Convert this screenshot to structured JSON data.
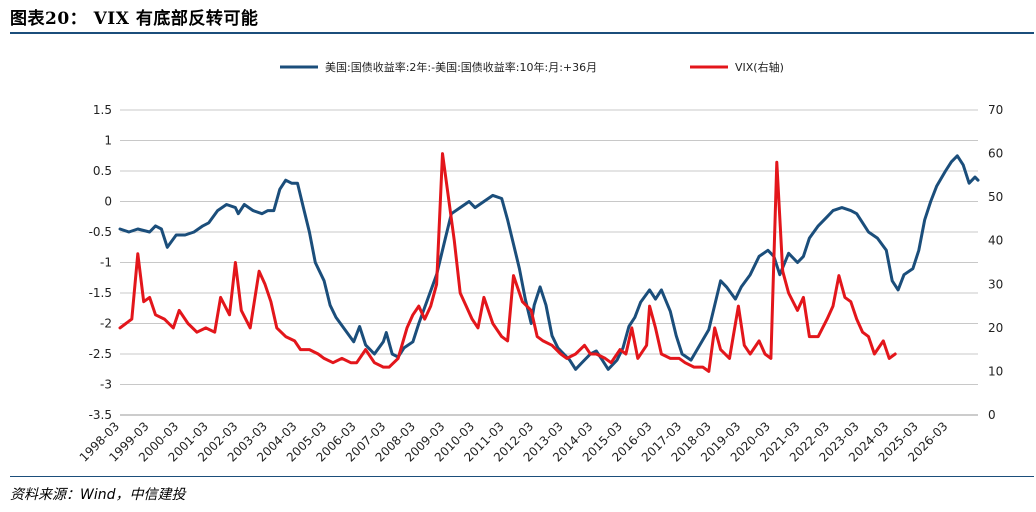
{
  "title": "图表20： VIX 有底部反转可能",
  "source": "资料来源：Wind，中信建投",
  "chart_data": {
    "type": "line",
    "legend_position": "top-center",
    "grid": true,
    "y_left": {
      "ylim": [
        -3.5,
        1.5
      ],
      "ticks": [
        "1.5",
        "1",
        "0.5",
        "0",
        "-0.5",
        "-1",
        "-1.5",
        "-2",
        "-2.5",
        "-3",
        "-3.5"
      ]
    },
    "y_right": {
      "ylim": [
        0,
        70
      ],
      "ticks": [
        "70",
        "60",
        "50",
        "40",
        "30",
        "20",
        "10",
        "0"
      ]
    },
    "x_ticks": [
      "1998-03",
      "1999-03",
      "2000-03",
      "2001-03",
      "2002-03",
      "2003-03",
      "2004-03",
      "2005-03",
      "2006-03",
      "2007-03",
      "2008-03",
      "2009-03",
      "2010-03",
      "2011-03",
      "2012-03",
      "2013-03",
      "2014-03",
      "2015-03",
      "2016-03",
      "2017-03",
      "2018-03",
      "2019-03",
      "2020-03",
      "2021-03",
      "2022-03",
      "2023-03",
      "2024-03",
      "2025-03",
      "2026-03"
    ],
    "series": [
      {
        "name": "美国:国债收益率:2年:-美国:国债收益率:10年:月:+36月",
        "axis": "left",
        "color": "#1b4e7b",
        "points": [
          [
            1998.0,
            -0.45
          ],
          [
            1998.3,
            -0.5
          ],
          [
            1998.6,
            -0.45
          ],
          [
            1999.0,
            -0.5
          ],
          [
            1999.2,
            -0.4
          ],
          [
            1999.4,
            -0.45
          ],
          [
            1999.6,
            -0.75
          ],
          [
            1999.9,
            -0.55
          ],
          [
            2000.2,
            -0.55
          ],
          [
            2000.5,
            -0.5
          ],
          [
            2000.8,
            -0.4
          ],
          [
            2001.0,
            -0.35
          ],
          [
            2001.3,
            -0.15
          ],
          [
            2001.6,
            -0.05
          ],
          [
            2001.9,
            -0.1
          ],
          [
            2002.0,
            -0.2
          ],
          [
            2002.2,
            -0.05
          ],
          [
            2002.5,
            -0.15
          ],
          [
            2002.8,
            -0.2
          ],
          [
            2003.0,
            -0.15
          ],
          [
            2003.2,
            -0.15
          ],
          [
            2003.4,
            0.2
          ],
          [
            2003.6,
            0.35
          ],
          [
            2003.8,
            0.3
          ],
          [
            2004.0,
            0.3
          ],
          [
            2004.2,
            -0.1
          ],
          [
            2004.4,
            -0.5
          ],
          [
            2004.6,
            -1.0
          ],
          [
            2004.9,
            -1.3
          ],
          [
            2005.1,
            -1.7
          ],
          [
            2005.3,
            -1.9
          ],
          [
            2005.6,
            -2.1
          ],
          [
            2005.9,
            -2.3
          ],
          [
            2006.1,
            -2.05
          ],
          [
            2006.3,
            -2.35
          ],
          [
            2006.6,
            -2.5
          ],
          [
            2006.9,
            -2.3
          ],
          [
            2007.0,
            -2.15
          ],
          [
            2007.2,
            -2.5
          ],
          [
            2007.4,
            -2.55
          ],
          [
            2007.6,
            -2.4
          ],
          [
            2007.9,
            -2.3
          ],
          [
            2008.1,
            -2.0
          ],
          [
            2008.4,
            -1.6
          ],
          [
            2008.7,
            -1.2
          ],
          [
            2009.0,
            -0.6
          ],
          [
            2009.2,
            -0.2
          ],
          [
            2009.5,
            -0.1
          ],
          [
            2009.8,
            0.0
          ],
          [
            2010.0,
            -0.1
          ],
          [
            2010.3,
            0.0
          ],
          [
            2010.6,
            0.1
          ],
          [
            2010.9,
            0.05
          ],
          [
            2011.1,
            -0.3
          ],
          [
            2011.3,
            -0.7
          ],
          [
            2011.5,
            -1.1
          ],
          [
            2011.7,
            -1.6
          ],
          [
            2011.9,
            -2.0
          ],
          [
            2012.0,
            -1.7
          ],
          [
            2012.2,
            -1.4
          ],
          [
            2012.4,
            -1.7
          ],
          [
            2012.6,
            -2.2
          ],
          [
            2012.8,
            -2.4
          ],
          [
            2013.0,
            -2.5
          ],
          [
            2013.2,
            -2.6
          ],
          [
            2013.4,
            -2.75
          ],
          [
            2013.6,
            -2.65
          ],
          [
            2013.9,
            -2.5
          ],
          [
            2014.1,
            -2.45
          ],
          [
            2014.3,
            -2.6
          ],
          [
            2014.5,
            -2.75
          ],
          [
            2014.8,
            -2.6
          ],
          [
            2015.0,
            -2.4
          ],
          [
            2015.2,
            -2.05
          ],
          [
            2015.4,
            -1.9
          ],
          [
            2015.6,
            -1.65
          ],
          [
            2015.9,
            -1.45
          ],
          [
            2016.1,
            -1.6
          ],
          [
            2016.3,
            -1.45
          ],
          [
            2016.6,
            -1.8
          ],
          [
            2016.8,
            -2.2
          ],
          [
            2017.0,
            -2.5
          ],
          [
            2017.3,
            -2.6
          ],
          [
            2017.6,
            -2.35
          ],
          [
            2017.9,
            -2.1
          ],
          [
            2018.1,
            -1.7
          ],
          [
            2018.3,
            -1.3
          ],
          [
            2018.5,
            -1.4
          ],
          [
            2018.8,
            -1.6
          ],
          [
            2019.0,
            -1.4
          ],
          [
            2019.3,
            -1.2
          ],
          [
            2019.6,
            -0.9
          ],
          [
            2019.9,
            -0.8
          ],
          [
            2020.1,
            -0.9
          ],
          [
            2020.3,
            -1.2
          ],
          [
            2020.6,
            -0.85
          ],
          [
            2020.9,
            -1.0
          ],
          [
            2021.1,
            -0.9
          ],
          [
            2021.3,
            -0.6
          ],
          [
            2021.6,
            -0.4
          ],
          [
            2021.9,
            -0.25
          ],
          [
            2022.1,
            -0.15
          ],
          [
            2022.4,
            -0.1
          ],
          [
            2022.7,
            -0.15
          ],
          [
            2022.9,
            -0.2
          ],
          [
            2023.1,
            -0.35
          ],
          [
            2023.3,
            -0.5
          ],
          [
            2023.6,
            -0.6
          ],
          [
            2023.9,
            -0.8
          ],
          [
            2024.1,
            -1.3
          ],
          [
            2024.3,
            -1.45
          ],
          [
            2024.5,
            -1.2
          ],
          [
            2024.8,
            -1.1
          ],
          [
            2025.0,
            -0.8
          ],
          [
            2025.2,
            -0.3
          ],
          [
            2025.4,
            0.0
          ],
          [
            2025.6,
            0.25
          ],
          [
            2025.9,
            0.5
          ],
          [
            2026.1,
            0.65
          ],
          [
            2026.3,
            0.75
          ],
          [
            2026.5,
            0.6
          ],
          [
            2026.7,
            0.3
          ],
          [
            2026.9,
            0.4
          ],
          [
            2027.0,
            0.35
          ]
        ]
      },
      {
        "name": "VIX(右轴)",
        "axis": "right",
        "color": "#e3161b",
        "points": [
          [
            1998.0,
            20
          ],
          [
            1998.2,
            21
          ],
          [
            1998.4,
            22
          ],
          [
            1998.6,
            37
          ],
          [
            1998.8,
            26
          ],
          [
            1999.0,
            27
          ],
          [
            1999.2,
            23
          ],
          [
            1999.5,
            22
          ],
          [
            1999.8,
            20
          ],
          [
            2000.0,
            24
          ],
          [
            2000.3,
            21
          ],
          [
            2000.6,
            19
          ],
          [
            2000.9,
            20
          ],
          [
            2001.2,
            19
          ],
          [
            2001.4,
            27
          ],
          [
            2001.7,
            23
          ],
          [
            2001.9,
            35
          ],
          [
            2002.1,
            24
          ],
          [
            2002.4,
            20
          ],
          [
            2002.7,
            33
          ],
          [
            2002.9,
            30
          ],
          [
            2003.1,
            26
          ],
          [
            2003.3,
            20
          ],
          [
            2003.6,
            18
          ],
          [
            2003.9,
            17
          ],
          [
            2004.1,
            15
          ],
          [
            2004.4,
            15
          ],
          [
            2004.7,
            14
          ],
          [
            2004.9,
            13
          ],
          [
            2005.2,
            12
          ],
          [
            2005.5,
            13
          ],
          [
            2005.8,
            12
          ],
          [
            2006.0,
            12
          ],
          [
            2006.3,
            15
          ],
          [
            2006.6,
            12
          ],
          [
            2006.9,
            11
          ],
          [
            2007.1,
            11
          ],
          [
            2007.4,
            13
          ],
          [
            2007.7,
            20
          ],
          [
            2007.9,
            23
          ],
          [
            2008.1,
            25
          ],
          [
            2008.3,
            22
          ],
          [
            2008.5,
            25
          ],
          [
            2008.7,
            30
          ],
          [
            2008.9,
            60
          ],
          [
            2009.1,
            50
          ],
          [
            2009.3,
            40
          ],
          [
            2009.5,
            28
          ],
          [
            2009.7,
            25
          ],
          [
            2009.9,
            22
          ],
          [
            2010.1,
            20
          ],
          [
            2010.3,
            27
          ],
          [
            2010.6,
            21
          ],
          [
            2010.9,
            18
          ],
          [
            2011.1,
            17
          ],
          [
            2011.3,
            32
          ],
          [
            2011.6,
            26
          ],
          [
            2011.9,
            24
          ],
          [
            2012.1,
            18
          ],
          [
            2012.3,
            17
          ],
          [
            2012.6,
            16
          ],
          [
            2012.9,
            14
          ],
          [
            2013.1,
            13
          ],
          [
            2013.4,
            14
          ],
          [
            2013.7,
            16
          ],
          [
            2013.9,
            14
          ],
          [
            2014.1,
            14
          ],
          [
            2014.4,
            13
          ],
          [
            2014.6,
            12
          ],
          [
            2014.9,
            15
          ],
          [
            2015.1,
            14
          ],
          [
            2015.3,
            20
          ],
          [
            2015.5,
            13
          ],
          [
            2015.8,
            16
          ],
          [
            2015.9,
            25
          ],
          [
            2016.1,
            20
          ],
          [
            2016.3,
            14
          ],
          [
            2016.6,
            13
          ],
          [
            2016.9,
            13
          ],
          [
            2017.1,
            12
          ],
          [
            2017.4,
            11
          ],
          [
            2017.7,
            11
          ],
          [
            2017.9,
            10
          ],
          [
            2018.1,
            20
          ],
          [
            2018.3,
            15
          ],
          [
            2018.6,
            13
          ],
          [
            2018.9,
            25
          ],
          [
            2019.1,
            16
          ],
          [
            2019.3,
            14
          ],
          [
            2019.6,
            17
          ],
          [
            2019.8,
            14
          ],
          [
            2020.0,
            13
          ],
          [
            2020.2,
            58
          ],
          [
            2020.4,
            33
          ],
          [
            2020.6,
            28
          ],
          [
            2020.9,
            24
          ],
          [
            2021.1,
            27
          ],
          [
            2021.3,
            18
          ],
          [
            2021.6,
            18
          ],
          [
            2021.9,
            22
          ],
          [
            2022.1,
            25
          ],
          [
            2022.3,
            32
          ],
          [
            2022.5,
            27
          ],
          [
            2022.7,
            26
          ],
          [
            2022.9,
            22
          ],
          [
            2023.1,
            19
          ],
          [
            2023.3,
            18
          ],
          [
            2023.5,
            14
          ],
          [
            2023.8,
            17
          ],
          [
            2024.0,
            13
          ],
          [
            2024.2,
            14
          ]
        ]
      }
    ]
  }
}
